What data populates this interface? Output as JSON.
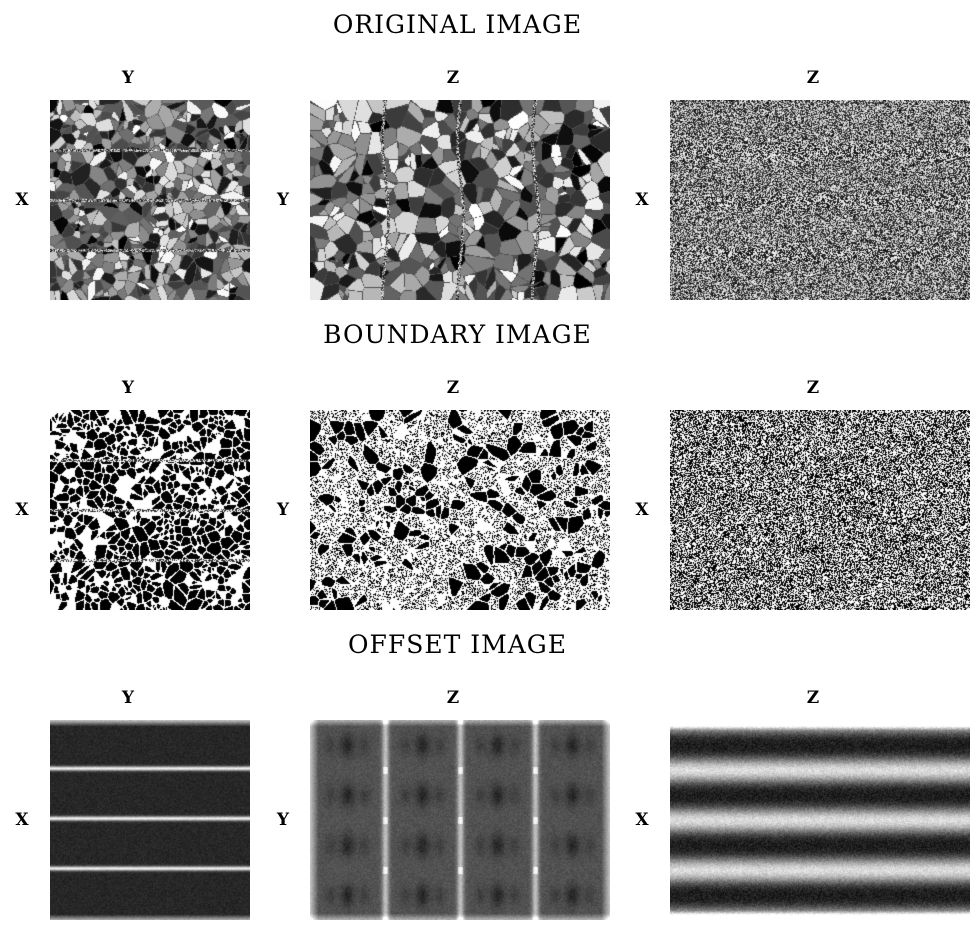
{
  "sections": [
    {
      "title": "ORIGINAL IMAGE",
      "panels": [
        {
          "top_label": "Y",
          "left_label": "X",
          "pattern": "grains-rows"
        },
        {
          "top_label": "Z",
          "left_label": "Y",
          "pattern": "grains-cols"
        },
        {
          "top_label": "Z",
          "left_label": "X",
          "pattern": "noise-bands"
        }
      ]
    },
    {
      "title": "BOUNDARY IMAGE",
      "panels": [
        {
          "top_label": "Y",
          "left_label": "X",
          "pattern": "cells-rows"
        },
        {
          "top_label": "Z",
          "left_label": "Y",
          "pattern": "blobs"
        },
        {
          "top_label": "Z",
          "left_label": "X",
          "pattern": "bw-noise"
        }
      ]
    },
    {
      "title": "OFFSET IMAGE",
      "panels": [
        {
          "top_label": "Y",
          "left_label": "X",
          "pattern": "offset-lines"
        },
        {
          "top_label": "Z",
          "left_label": "Y",
          "pattern": "offset-grid"
        },
        {
          "top_label": "Z",
          "left_label": "X",
          "pattern": "offset-bands"
        }
      ]
    }
  ]
}
